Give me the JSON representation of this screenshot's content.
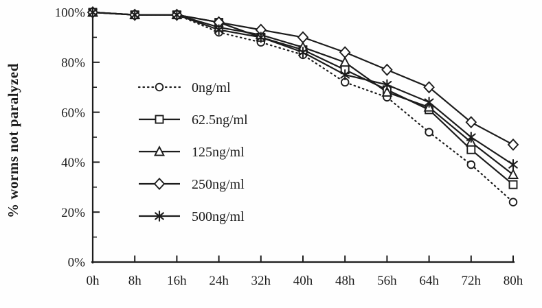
{
  "chart_data": {
    "type": "line",
    "title": "",
    "xlabel": "",
    "ylabel": "% worms not paralyzed",
    "x_hours": [
      0,
      8,
      16,
      24,
      32,
      40,
      48,
      56,
      64,
      72,
      80
    ],
    "x_tick_labels": [
      "0h",
      "8h",
      "16h",
      "24h",
      "32h",
      "40h",
      "48h",
      "56h",
      "64h",
      "72h",
      "80h"
    ],
    "y_tick_values": [
      0,
      20,
      40,
      60,
      80,
      100
    ],
    "y_tick_labels": [
      "0%",
      "20%",
      "40%",
      "60%",
      "80%",
      "100%"
    ],
    "y_minor_tick_values": [
      10,
      30,
      50,
      70,
      90
    ],
    "ylim": [
      0,
      100
    ],
    "grid": false,
    "legend_position": "inside-upper-left",
    "series": [
      {
        "name": "0ng/ml",
        "marker": "circle",
        "line": "dotted",
        "values": [
          100,
          99,
          99,
          92,
          88,
          83,
          72,
          66,
          52,
          39,
          24
        ]
      },
      {
        "name": "62.5ng/ml",
        "marker": "square",
        "line": "solid",
        "values": [
          100,
          99,
          99,
          96,
          90,
          85,
          77,
          69,
          61,
          45,
          31
        ]
      },
      {
        "name": "125ng/ml",
        "marker": "triangle",
        "line": "solid",
        "values": [
          100,
          99,
          99,
          94,
          91,
          86,
          80,
          68,
          62,
          48,
          35
        ]
      },
      {
        "name": "250ng/ml",
        "marker": "diamond",
        "line": "solid",
        "values": [
          100,
          99,
          99,
          96,
          93,
          90,
          84,
          77,
          70,
          56,
          47
        ]
      },
      {
        "name": "500ng/ml",
        "marker": "asterisk",
        "line": "solid",
        "values": [
          100,
          99,
          99,
          93,
          90,
          84,
          75,
          71,
          64,
          50,
          39
        ]
      }
    ],
    "colors": {
      "ink": "#1c1c1c",
      "marker_fill": "#ffffff",
      "background": "#fefefe"
    }
  }
}
